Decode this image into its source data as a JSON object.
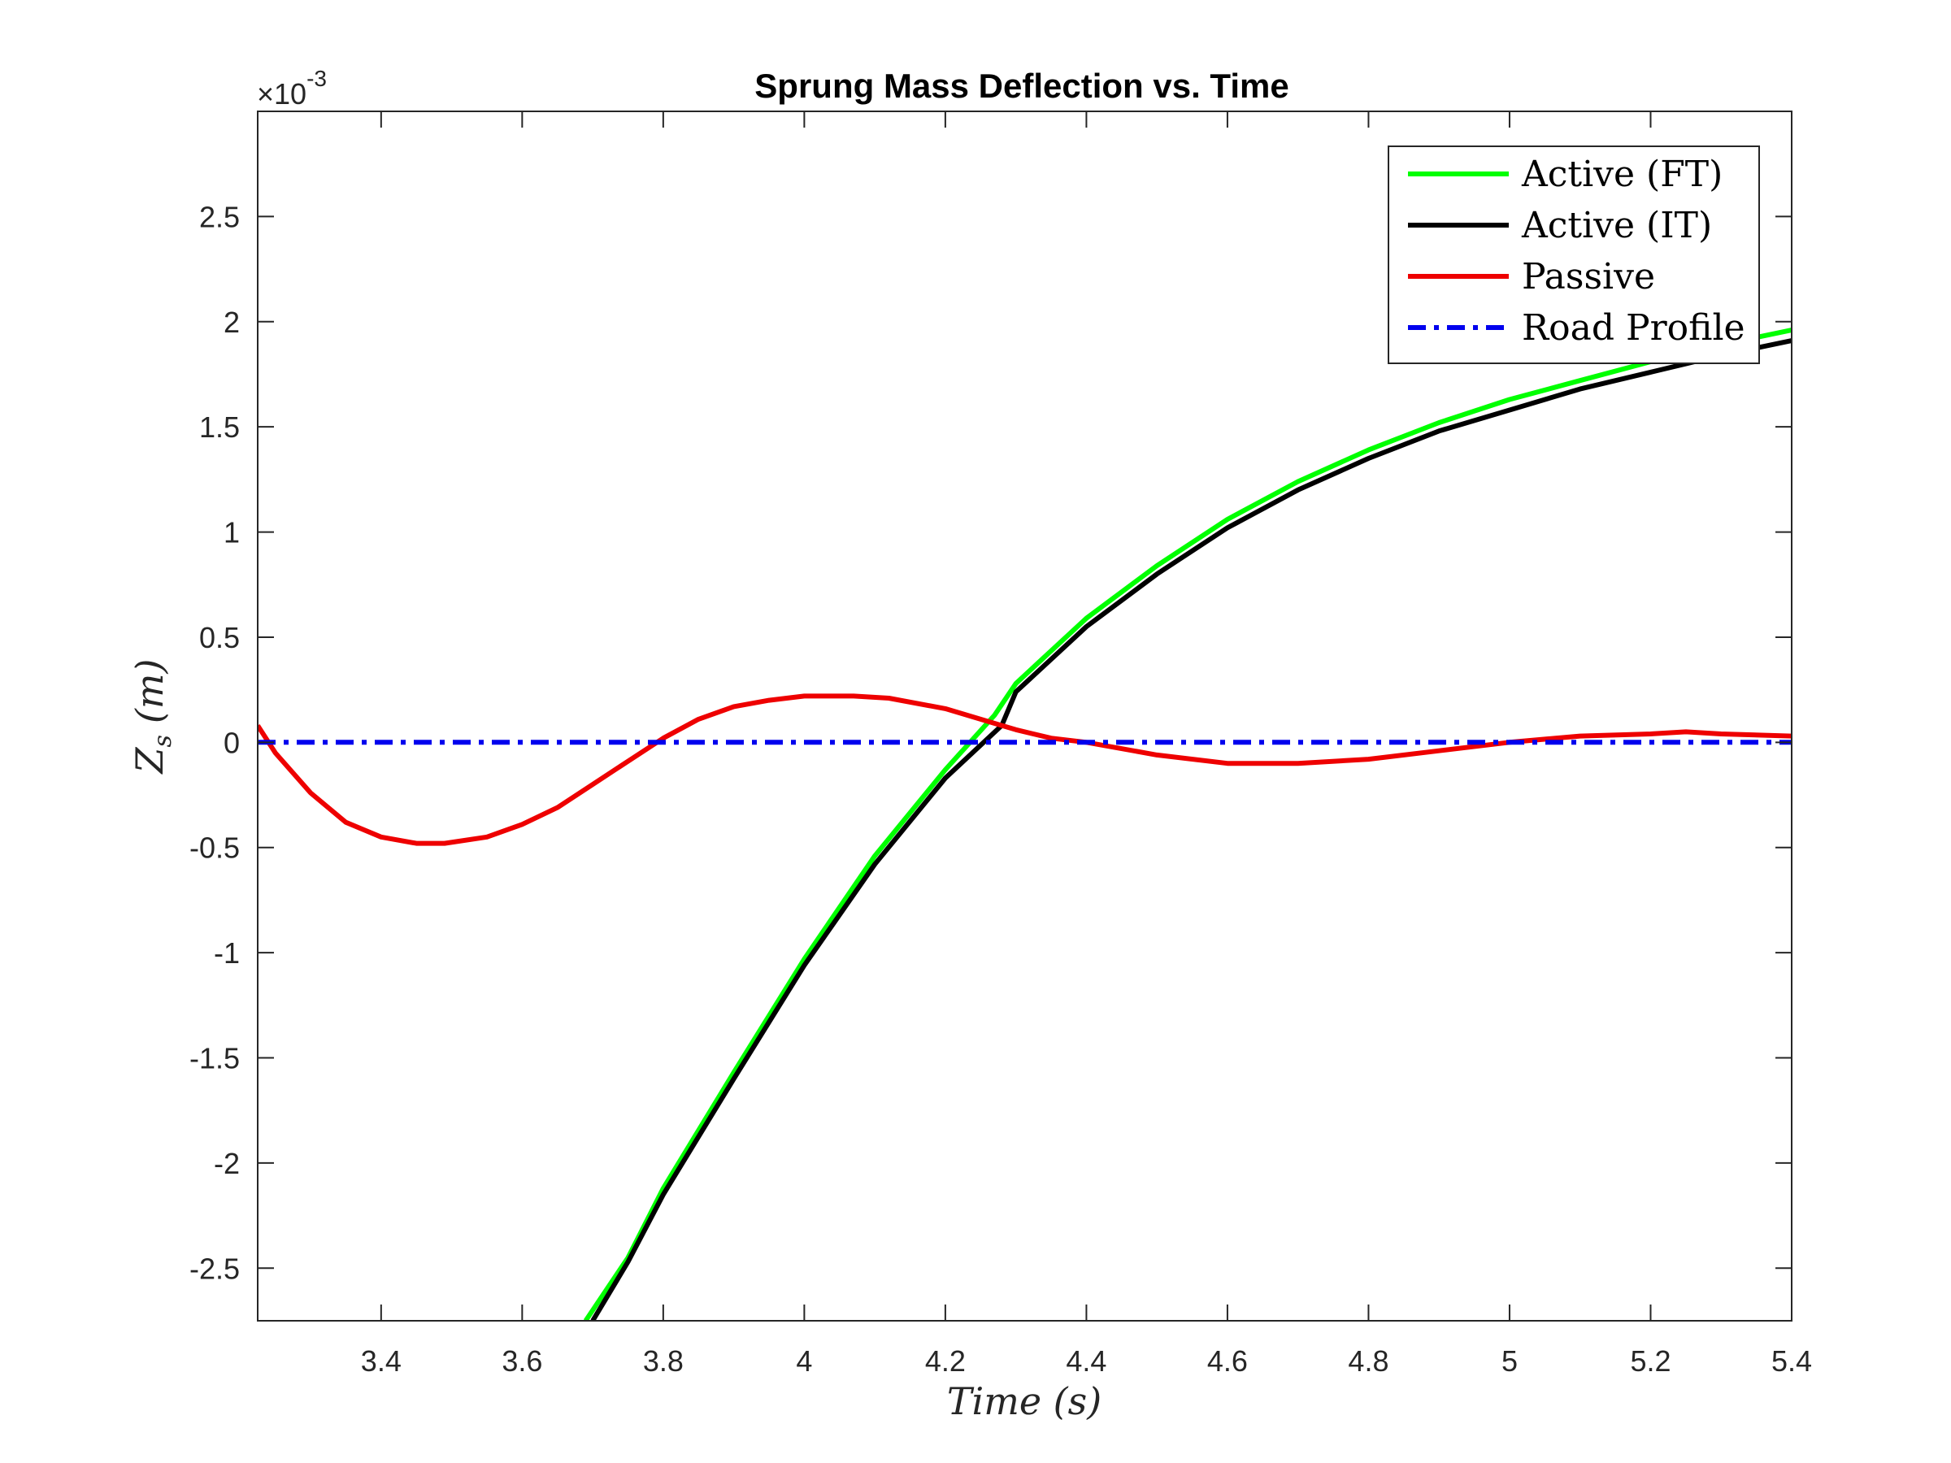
{
  "chart_data": {
    "type": "line",
    "title": "Sprung Mass Deflection vs. Time",
    "xlabel": "Time (s)",
    "ylabel_main": "Z",
    "ylabel_sub": "s",
    "ylabel_unit": "(m)",
    "y_exponent_prefix": "×10",
    "y_exponent": "-3",
    "xlim": [
      3.225,
      5.4
    ],
    "ylim": [
      -0.00275,
      0.003
    ],
    "x_ticks": [
      3.4,
      3.6,
      3.8,
      4,
      4.2,
      4.4,
      4.6,
      4.8,
      5,
      5.2,
      5.4
    ],
    "x_tick_labels": [
      "3.4",
      "3.6",
      "3.8",
      "4",
      "4.2",
      "4.4",
      "4.6",
      "4.8",
      "5",
      "5.2",
      "5.4"
    ],
    "y_ticks": [
      -0.0025,
      -0.002,
      -0.0015,
      -0.001,
      -0.0005,
      0,
      0.0005,
      0.001,
      0.0015,
      0.002,
      0.0025
    ],
    "y_tick_labels": [
      "-2.5",
      "-2",
      "-1.5",
      "-1",
      "-0.5",
      "0",
      "0.5",
      "1",
      "1.5",
      "2",
      "2.5"
    ],
    "grid": false,
    "legend_position": "top-right",
    "series": [
      {
        "name": "Active (FT)",
        "color": "#00ff00",
        "style": "solid",
        "x": [
          3.69,
          3.75,
          3.8,
          3.9,
          4.0,
          4.1,
          4.2,
          4.27,
          4.3,
          4.4,
          4.5,
          4.6,
          4.7,
          4.8,
          4.9,
          5.0,
          5.1,
          5.2,
          5.3,
          5.4
        ],
        "y": [
          -0.00275,
          -0.00245,
          -0.00212,
          -0.00157,
          -0.00103,
          -0.00054,
          -0.00013,
          0.00013,
          0.00028,
          0.00059,
          0.00084,
          0.00106,
          0.00124,
          0.00139,
          0.00152,
          0.00163,
          0.00172,
          0.00181,
          0.00189,
          0.00196
        ]
      },
      {
        "name": "Active (IT)",
        "color": "#000000",
        "style": "solid",
        "x": [
          3.7,
          3.75,
          3.8,
          3.9,
          4.0,
          4.1,
          4.2,
          4.28,
          4.3,
          4.4,
          4.5,
          4.6,
          4.7,
          4.8,
          4.9,
          5.0,
          5.1,
          5.2,
          5.3,
          5.4
        ],
        "y": [
          -0.00275,
          -0.00247,
          -0.00215,
          -0.0016,
          -0.00106,
          -0.00058,
          -0.00017,
          8e-05,
          0.00024,
          0.00055,
          0.0008,
          0.00102,
          0.0012,
          0.00135,
          0.00148,
          0.00158,
          0.00168,
          0.00176,
          0.00184,
          0.00191
        ]
      },
      {
        "name": "Passive",
        "color": "#ee0000",
        "style": "solid",
        "x": [
          3.225,
          3.25,
          3.3,
          3.35,
          3.4,
          3.45,
          3.49,
          3.55,
          3.6,
          3.65,
          3.7,
          3.75,
          3.8,
          3.85,
          3.9,
          3.95,
          4.0,
          4.07,
          4.12,
          4.2,
          4.25,
          4.3,
          4.35,
          4.4,
          4.5,
          4.6,
          4.65,
          4.7,
          4.8,
          4.9,
          5.0,
          5.1,
          5.2,
          5.25,
          5.3,
          5.4
        ],
        "y": [
          8e-05,
          -5e-05,
          -0.00024,
          -0.00038,
          -0.00045,
          -0.00048,
          -0.00048,
          -0.00045,
          -0.00039,
          -0.00031,
          -0.0002,
          -9e-05,
          2e-05,
          0.00011,
          0.00017,
          0.0002,
          0.00022,
          0.00022,
          0.00021,
          0.00016,
          0.00011,
          6e-05,
          2e-05,
          0.0,
          -6e-05,
          -0.0001,
          -0.0001,
          -0.0001,
          -8e-05,
          -4e-05,
          0.0,
          3e-05,
          4e-05,
          5e-05,
          4e-05,
          3e-05
        ]
      },
      {
        "name": "Road Profile",
        "color": "#0000ee",
        "style": "dashdot",
        "x": [
          3.225,
          5.4
        ],
        "y": [
          0,
          0
        ]
      }
    ]
  }
}
